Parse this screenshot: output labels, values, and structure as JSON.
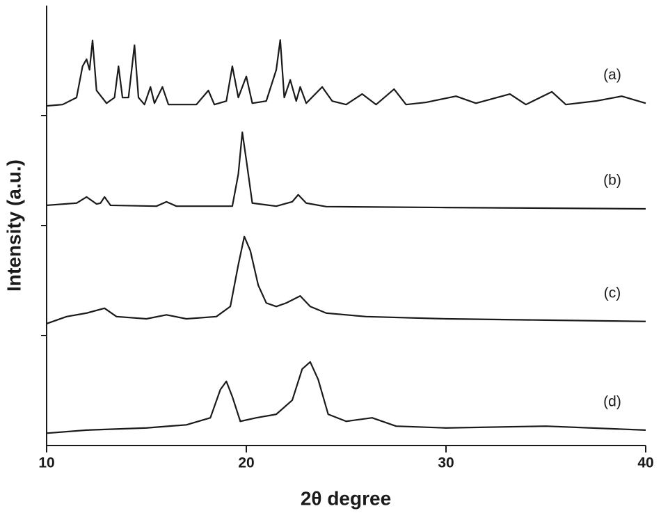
{
  "chart_data": {
    "type": "line",
    "xlabel": "2θ degree",
    "ylabel": "Intensity (a.u.)",
    "xlim": [
      10,
      40
    ],
    "xticks": [
      10,
      20,
      30,
      40
    ],
    "ylim": [
      0,
      100
    ],
    "yticks": [
      25,
      50,
      75
    ],
    "series": [
      {
        "name": "(a)",
        "color": "#1a1a1a",
        "x": [
          10,
          10.8,
          11.5,
          11.8,
          12.0,
          12.15,
          12.3,
          12.5,
          13.0,
          13.4,
          13.6,
          13.8,
          14.1,
          14.4,
          14.6,
          14.9,
          15.2,
          15.4,
          15.8,
          16.1,
          16.5,
          17.5,
          18.1,
          18.4,
          19.0,
          19.3,
          19.6,
          20.0,
          20.3,
          21.0,
          21.5,
          21.7,
          21.9,
          22.2,
          22.5,
          22.7,
          23.0,
          23.8,
          24.3,
          25.0,
          25.8,
          26.5,
          27.4,
          28.0,
          29.0,
          30.5,
          31.5,
          33.2,
          34.0,
          35.3,
          36.0,
          37.5,
          38.8,
          40
        ],
        "values": [
          77.2,
          77.5,
          79.1,
          86.2,
          87.8,
          85.4,
          92.1,
          80.7,
          77.8,
          79.1,
          86.2,
          79.1,
          79.1,
          91.0,
          79.1,
          77.5,
          81.5,
          77.8,
          81.5,
          77.5,
          77.5,
          77.5,
          80.7,
          77.5,
          78.3,
          86.2,
          79.1,
          83.9,
          77.8,
          78.3,
          85.4,
          92.2,
          79.1,
          83.1,
          78.3,
          81.5,
          77.8,
          81.5,
          78.3,
          77.5,
          79.9,
          77.5,
          81.0,
          77.5,
          78.0,
          79.4,
          77.8,
          79.9,
          77.5,
          80.4,
          77.5,
          78.3,
          79.4,
          77.8
        ]
      },
      {
        "name": "(b)",
        "color": "#1a1a1a",
        "x": [
          10,
          11.5,
          12.0,
          12.5,
          12.7,
          12.9,
          13.2,
          15.5,
          16.0,
          16.5,
          19.3,
          19.6,
          19.8,
          20.0,
          20.3,
          21.5,
          22.3,
          22.6,
          23.0,
          24.0,
          30,
          40
        ],
        "values": [
          54.6,
          55.1,
          56.5,
          54.9,
          55.1,
          56.5,
          54.6,
          54.4,
          55.4,
          54.4,
          54.4,
          61.7,
          71.2,
          64.9,
          55.1,
          54.4,
          55.4,
          57.0,
          55.1,
          54.3,
          54.1,
          53.8
        ]
      },
      {
        "name": "(c)",
        "color": "#1a1a1a",
        "x": [
          10,
          11,
          12,
          12.9,
          13.5,
          15,
          16,
          17,
          18.5,
          19.2,
          19.6,
          19.9,
          20.2,
          20.6,
          21.0,
          21.5,
          22.0,
          22.7,
          23.2,
          24,
          26,
          30,
          35,
          40
        ],
        "values": [
          27.7,
          29.3,
          30.1,
          31.2,
          29.3,
          28.8,
          29.7,
          28.8,
          29.3,
          31.6,
          41.1,
          47.5,
          44.3,
          36.4,
          32.4,
          31.6,
          32.4,
          34.0,
          31.6,
          30.1,
          29.3,
          28.8,
          28.5,
          28.2
        ]
      },
      {
        "name": "(d)",
        "color": "#1a1a1a",
        "x": [
          10,
          12,
          15,
          17,
          18.2,
          18.7,
          19.0,
          19.3,
          19.7,
          20.5,
          21.5,
          22.3,
          22.8,
          23.2,
          23.6,
          24.1,
          25,
          26.3,
          27.5,
          30,
          35,
          40
        ],
        "values": [
          2.8,
          3.5,
          4.0,
          4.7,
          6.3,
          12.7,
          14.6,
          11.1,
          5.5,
          6.3,
          7.1,
          10.3,
          17.4,
          19.0,
          15.0,
          7.1,
          5.5,
          6.3,
          4.4,
          4.0,
          4.4,
          3.5
        ]
      }
    ]
  }
}
